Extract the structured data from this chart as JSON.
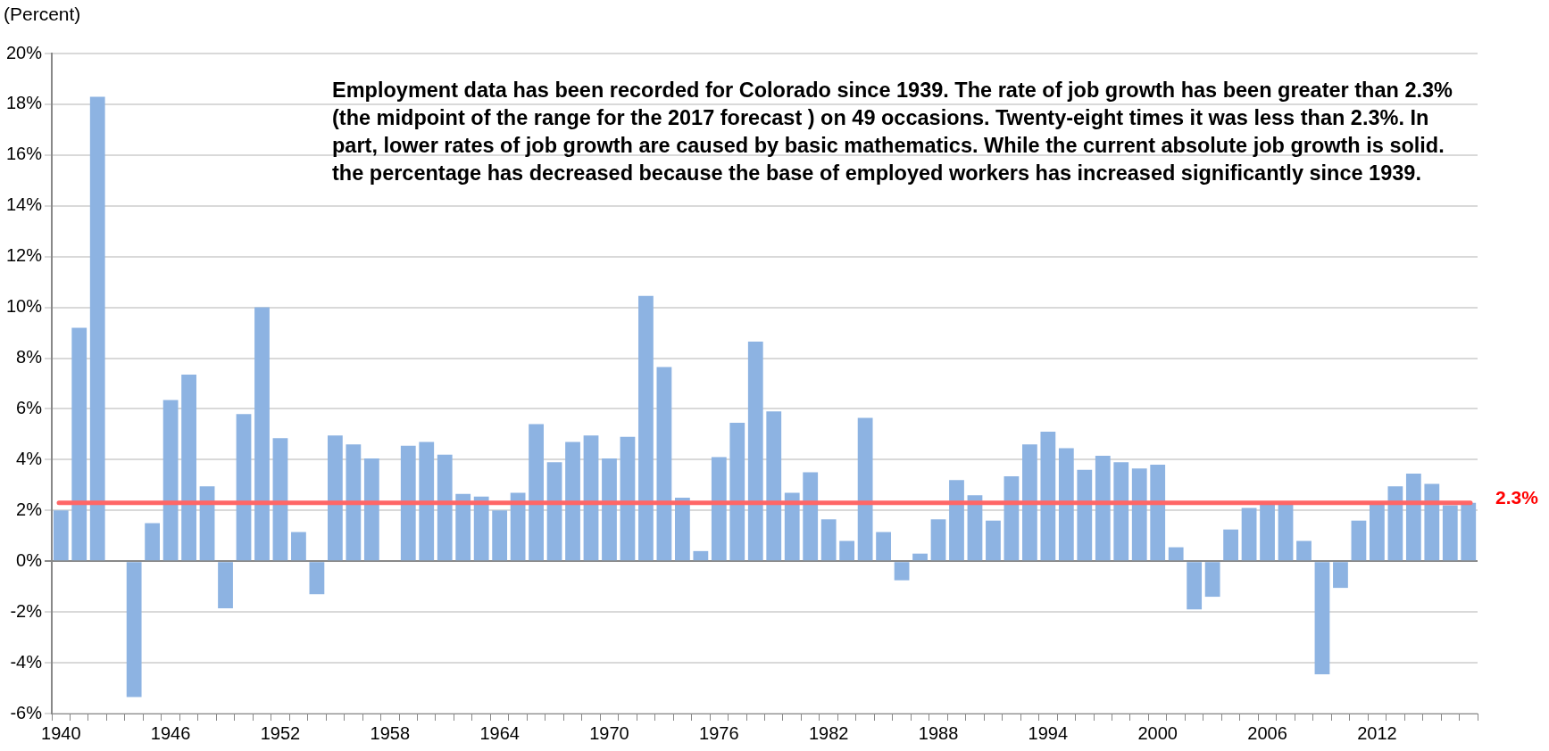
{
  "chart_data": {
    "type": "bar",
    "ylabel": "(Percent)",
    "categories": [
      "1940",
      null,
      null,
      null,
      null,
      null,
      "1946",
      null,
      null,
      null,
      null,
      null,
      "1952",
      null,
      null,
      null,
      null,
      null,
      "1958",
      null,
      null,
      null,
      null,
      null,
      "1964",
      null,
      null,
      null,
      null,
      null,
      "1970",
      null,
      null,
      null,
      null,
      null,
      "1976",
      null,
      null,
      null,
      null,
      null,
      "1982",
      null,
      null,
      null,
      null,
      null,
      "1988",
      null,
      null,
      null,
      null,
      null,
      "1994",
      null,
      null,
      null,
      null,
      null,
      "2000",
      null,
      null,
      null,
      null,
      null,
      "2006",
      null,
      null,
      null,
      null,
      null,
      "2012",
      null,
      null,
      null,
      null,
      null
    ],
    "values": [
      2.0,
      9.2,
      18.3,
      null,
      -5.35,
      1.5,
      6.35,
      7.35,
      2.95,
      -1.85,
      5.8,
      10.0,
      4.85,
      1.15,
      -1.3,
      4.95,
      4.6,
      4.05,
      null,
      4.55,
      4.7,
      4.2,
      2.65,
      2.55,
      2.0,
      2.7,
      5.4,
      3.9,
      4.7,
      4.95,
      4.05,
      4.9,
      10.45,
      7.65,
      2.5,
      0.4,
      4.1,
      5.45,
      8.65,
      5.9,
      2.7,
      3.5,
      1.65,
      0.8,
      5.65,
      1.15,
      -0.75,
      0.3,
      1.65,
      3.2,
      2.6,
      1.6,
      3.35,
      4.6,
      5.1,
      4.45,
      3.6,
      4.15,
      3.9,
      3.65,
      3.8,
      0.55,
      -1.9,
      -1.4,
      1.25,
      2.1,
      2.3,
      2.3,
      0.8,
      -4.45,
      -1.05,
      1.6,
      2.3,
      2.95,
      3.45,
      3.05,
      2.2,
      2.3
    ],
    "color": "#8db3e2",
    "ylim": [
      -6,
      20
    ],
    "yticks": [
      {
        "value": -6,
        "label": "-6%"
      },
      {
        "value": -4,
        "label": "-4%"
      },
      {
        "value": -2,
        "label": "-2%"
      },
      {
        "value": 0,
        "label": "0%"
      },
      {
        "value": 2,
        "label": "2%"
      },
      {
        "value": 4,
        "label": "4%"
      },
      {
        "value": 6,
        "label": "6%"
      },
      {
        "value": 8,
        "label": "8%"
      },
      {
        "value": 10,
        "label": "10%"
      },
      {
        "value": 12,
        "label": "12%"
      },
      {
        "value": 14,
        "label": "14%"
      },
      {
        "value": 16,
        "label": "16%"
      },
      {
        "value": 18,
        "label": "18%"
      },
      {
        "value": 20,
        "label": "20%"
      }
    ],
    "grid": "y",
    "ref_lines": [
      {
        "axis": "y",
        "value": 2.3,
        "label": "2.3%",
        "color": "#ff6666"
      }
    ],
    "annotations": [
      "Employment data has been recorded for Colorado since 1939. The rate of job growth has been greater than 2.3% (the midpoint of the range for the 2017 forecast ) on 49 occasions. Twenty-eight times it was less than 2.3%. In part, lower rates of job growth are caused by basic mathematics. While the current absolute job growth is solid. the percentage has decreased because the base of employed workers has increased significantly since 1939."
    ]
  }
}
